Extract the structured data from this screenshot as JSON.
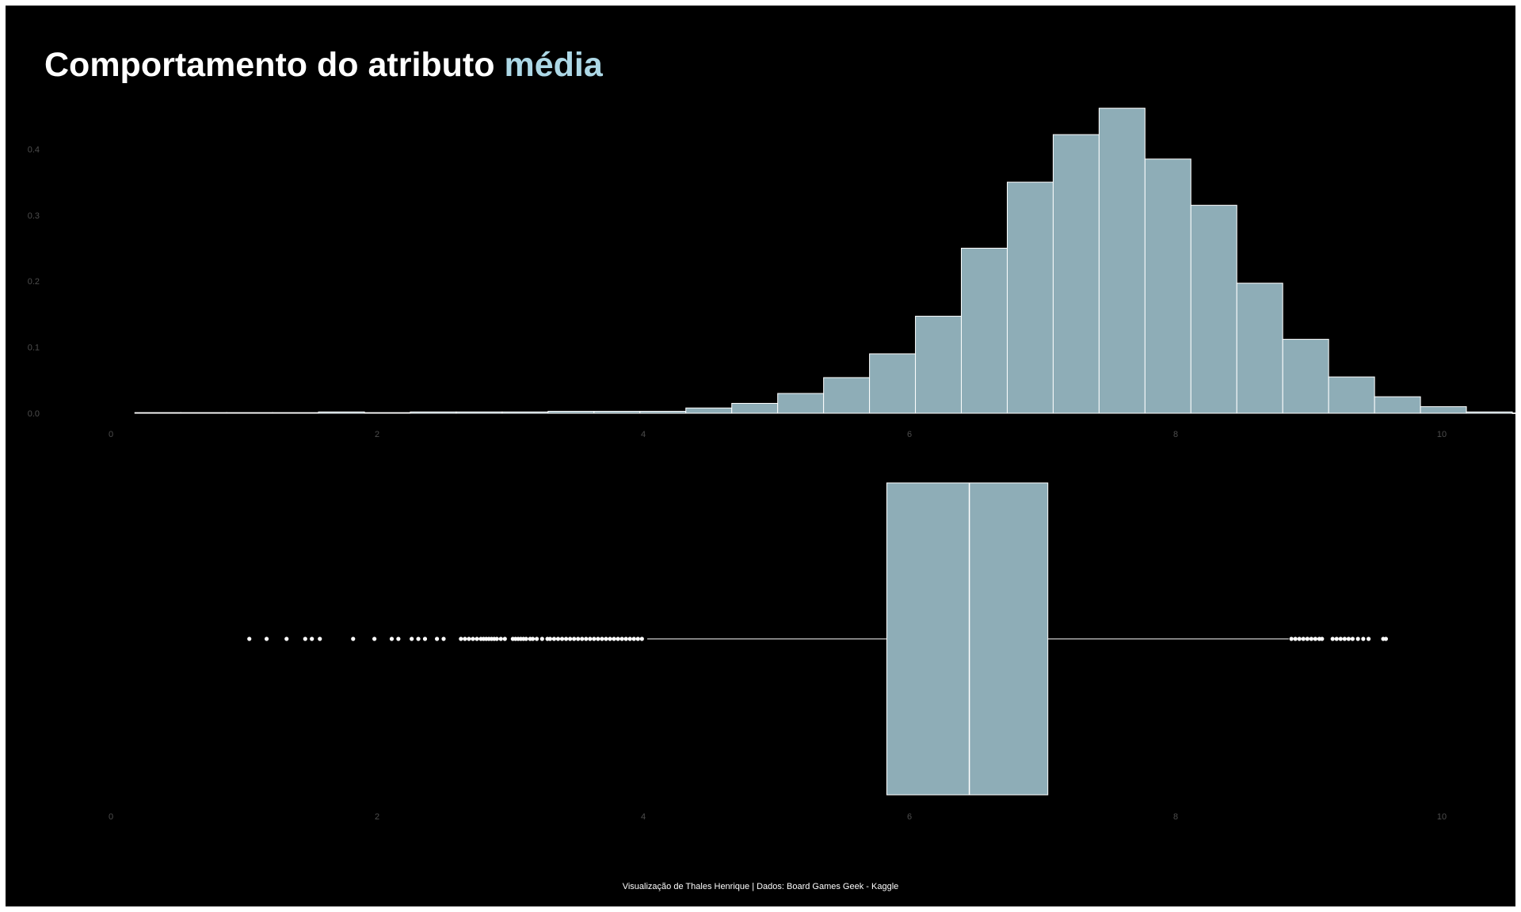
{
  "title": {
    "prefix": "Comportamento do atributo ",
    "highlight": "média"
  },
  "caption": "Visualização de Thales Henrique | Dados: Board Games Geek - Kaggle",
  "colors": {
    "background": "#000000",
    "fill": "#8eadb7",
    "stroke": "#ffffff",
    "accent": "#add8e6",
    "tick_text": "#4d4d4d"
  },
  "chart_data": [
    {
      "type": "histogram",
      "title": "",
      "xlabel": "",
      "ylabel": "",
      "xlim": [
        0,
        10
      ],
      "ylim": [
        0,
        0.47
      ],
      "grid": false,
      "x_ticks": [
        0,
        2,
        4,
        6,
        8,
        10
      ],
      "y_ticks": [
        0.0,
        0.1,
        0.2,
        0.3,
        0.4
      ],
      "bin_width": 0.345,
      "bin_start": 0.18,
      "values": [
        0.001,
        0.001,
        0.001,
        0.001,
        0.002,
        0.001,
        0.002,
        0.002,
        0.002,
        0.003,
        0.003,
        0.003,
        0.008,
        0.015,
        0.03,
        0.054,
        0.09,
        0.147,
        0.25,
        0.35,
        0.422,
        0.462,
        0.385,
        0.315,
        0.197,
        0.112,
        0.055,
        0.025,
        0.01,
        0.002,
        0.0005
      ]
    },
    {
      "type": "boxplot",
      "title": "",
      "xlabel": "",
      "ylabel": "",
      "xlim": [
        0,
        10
      ],
      "x_ticks": [
        0,
        2,
        4,
        6,
        8,
        10
      ],
      "q1": 5.83,
      "median": 6.45,
      "q3": 7.04,
      "whisker_low": 4.03,
      "whisker_high": 8.85,
      "outliers": [
        1.04,
        1.17,
        1.32,
        1.46,
        1.51,
        1.57,
        1.82,
        1.98,
        2.11,
        2.16,
        2.26,
        2.31,
        2.36,
        2.45,
        2.5,
        2.63,
        2.66,
        2.69,
        2.72,
        2.75,
        2.78,
        2.8,
        2.82,
        2.84,
        2.86,
        2.88,
        2.9,
        2.93,
        2.96,
        3.02,
        3.04,
        3.06,
        3.08,
        3.1,
        3.12,
        3.15,
        3.17,
        3.2,
        3.24,
        3.28,
        3.3,
        3.33,
        3.36,
        3.39,
        3.42,
        3.45,
        3.48,
        3.51,
        3.54,
        3.57,
        3.6,
        3.63,
        3.66,
        3.69,
        3.72,
        3.75,
        3.78,
        3.81,
        3.84,
        3.87,
        3.9,
        3.93,
        3.96,
        3.99,
        8.87,
        8.9,
        8.93,
        8.96,
        8.99,
        9.02,
        9.05,
        9.08,
        9.1,
        9.18,
        9.21,
        9.24,
        9.27,
        9.3,
        9.33,
        9.37,
        9.41,
        9.45,
        9.56,
        9.58
      ]
    }
  ]
}
